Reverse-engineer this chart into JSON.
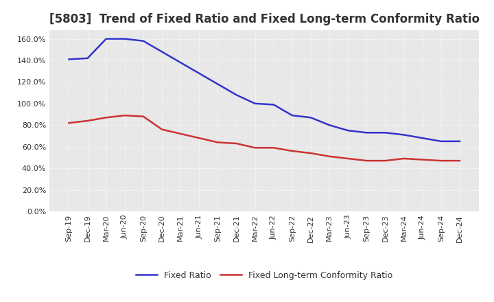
{
  "title": "[5803]  Trend of Fixed Ratio and Fixed Long-term Conformity Ratio",
  "x_labels": [
    "Sep-19",
    "Dec-19",
    "Mar-20",
    "Jun-20",
    "Sep-20",
    "Dec-20",
    "Mar-21",
    "Jun-21",
    "Sep-21",
    "Dec-21",
    "Mar-22",
    "Jun-22",
    "Sep-22",
    "Dec-22",
    "Mar-23",
    "Jun-23",
    "Sep-23",
    "Dec-23",
    "Mar-24",
    "Jun-24",
    "Sep-24",
    "Dec-24"
  ],
  "fixed_ratio": [
    141,
    142,
    160,
    160,
    158,
    148,
    138,
    128,
    118,
    108,
    100,
    99,
    89,
    87,
    80,
    75,
    73,
    73,
    71,
    68,
    65,
    65
  ],
  "fixed_lt_ratio": [
    82,
    84,
    87,
    89,
    88,
    76,
    72,
    68,
    64,
    63,
    59,
    59,
    56,
    54,
    51,
    49,
    47,
    47,
    49,
    48,
    47,
    47
  ],
  "fixed_ratio_color": "#3333CC",
  "fixed_lt_ratio_color": "#CC3333",
  "ylim": [
    0,
    168
  ],
  "yticks": [
    0,
    20,
    40,
    60,
    80,
    100,
    120,
    140,
    160
  ],
  "plot_bg_color": "#E8E8E8",
  "fig_bg_color": "#FFFFFF",
  "grid_color": "#FFFFFF",
  "title_color": "#333333",
  "legend_fixed_ratio": "Fixed Ratio",
  "legend_fixed_lt_ratio": "Fixed Long-term Conformity Ratio",
  "title_fontsize": 12,
  "axis_fontsize": 8,
  "legend_fontsize": 9
}
